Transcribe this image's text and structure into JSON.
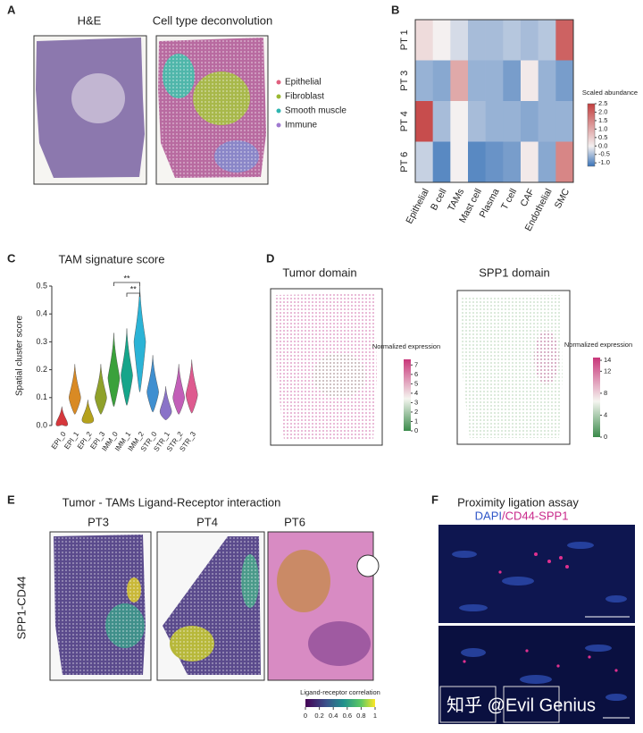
{
  "panel_labels": [
    "A",
    "B",
    "C",
    "D",
    "E",
    "F"
  ],
  "panel_a": {
    "titles": [
      "H&E",
      "Cell type deconvolution"
    ],
    "legend": [
      {
        "name": "Epithelial",
        "color": "#e0607e"
      },
      {
        "name": "Fibroblast",
        "color": "#9ab832"
      },
      {
        "name": "Smooth muscle",
        "color": "#2fb5b0"
      },
      {
        "name": "Immune",
        "color": "#a07ad0"
      }
    ]
  },
  "chart_data": [
    {
      "type": "heatmap",
      "rows": [
        "PT 1",
        "PT 3",
        "PT 4",
        "PT 6"
      ],
      "columns": [
        "Epithelial",
        "B cell",
        "TAMs",
        "Mast cell",
        "Plasma",
        "T cell",
        "CAF",
        "Endothelial",
        "SMC"
      ],
      "values": [
        [
          0.3,
          0.0,
          -0.2,
          -0.5,
          -0.5,
          -0.4,
          -0.5,
          -0.4,
          2.0
        ],
        [
          -0.6,
          -0.7,
          1.0,
          -0.6,
          -0.6,
          -0.8,
          0.1,
          -0.6,
          -0.8
        ],
        [
          2.3,
          -0.5,
          0.0,
          -0.5,
          -0.6,
          -0.6,
          -0.7,
          -0.6,
          -0.6
        ],
        [
          -0.3,
          -1.0,
          0.0,
          -1.0,
          -0.9,
          -0.8,
          0.1,
          -0.7,
          1.5
        ]
      ],
      "colorbar": {
        "title": "Scaled abundance",
        "lim": [
          -1.2,
          2.5
        ],
        "ticks": [
          2.5,
          {
            "value": 2,
            "label": "2.0"
          },
          1.5,
          {
            "value": 1,
            "label": "1.0"
          },
          0.5,
          {
            "value": 0,
            "label": "0.0"
          },
          -0.5,
          {
            "value": -1,
            "label": "-1.0"
          }
        ]
      }
    },
    {
      "type": "violin",
      "title": "TAM signature score",
      "y_label": "Spatial cluster score",
      "categories": [
        "EPI_0",
        "EPI_1",
        "EPI_2",
        "EPI_3",
        "IMM_0",
        "IMM_1",
        "IMM_2",
        "STR_0",
        "STR_1",
        "STR_2",
        "STR_3"
      ],
      "values": [
        0.005,
        0.1,
        0.02,
        0.1,
        0.17,
        0.18,
        0.3,
        0.12,
        0.05,
        0.1,
        0.11
      ],
      "colors": [
        "#d6373c",
        "#d98a24",
        "#b5a21c",
        "#8fa12a",
        "#3aa13b",
        "#16a58a",
        "#2bb3d6",
        "#3f8fd0",
        "#8a73c8",
        "#c25fb8",
        "#de5a8f"
      ],
      "ylim": [
        0,
        0.5
      ],
      "yticks": [
        {
          "value": 0,
          "label": "0.0"
        },
        0.1,
        0.2,
        0.3,
        0.4,
        0.5
      ],
      "annotations": [
        "**",
        "**"
      ]
    }
  ],
  "panel_d": {
    "titles": [
      "Tumor domain",
      "SPP1 domain"
    ],
    "colorbars": [
      {
        "title": "Normalized expression",
        "lim": [
          0,
          7.6
        ],
        "ticks": [
          7,
          6,
          5,
          4,
          3,
          2,
          1,
          0
        ]
      },
      {
        "title": "Normalized expression",
        "lim": [
          0,
          14.5
        ],
        "ticks": [
          14,
          12,
          8,
          4,
          0
        ]
      }
    ]
  },
  "panel_e": {
    "title": "Tumor - TAMs Ligand-Receptor interaction",
    "samples": [
      "PT3",
      "PT4",
      "PT6"
    ],
    "row_label": "SPP1-CD44",
    "colorbar": {
      "title": "Ligand-receptor correlation",
      "lim": [
        0,
        1
      ],
      "ticks": [
        0,
        0.2,
        0.4,
        0.6,
        0.8,
        1
      ]
    }
  },
  "panel_f": {
    "title": "Proximity ligation assay",
    "stain_labels": [
      "DAPI",
      "/CD44-SPP1"
    ],
    "watermark": "知乎 @Evil Genius"
  }
}
